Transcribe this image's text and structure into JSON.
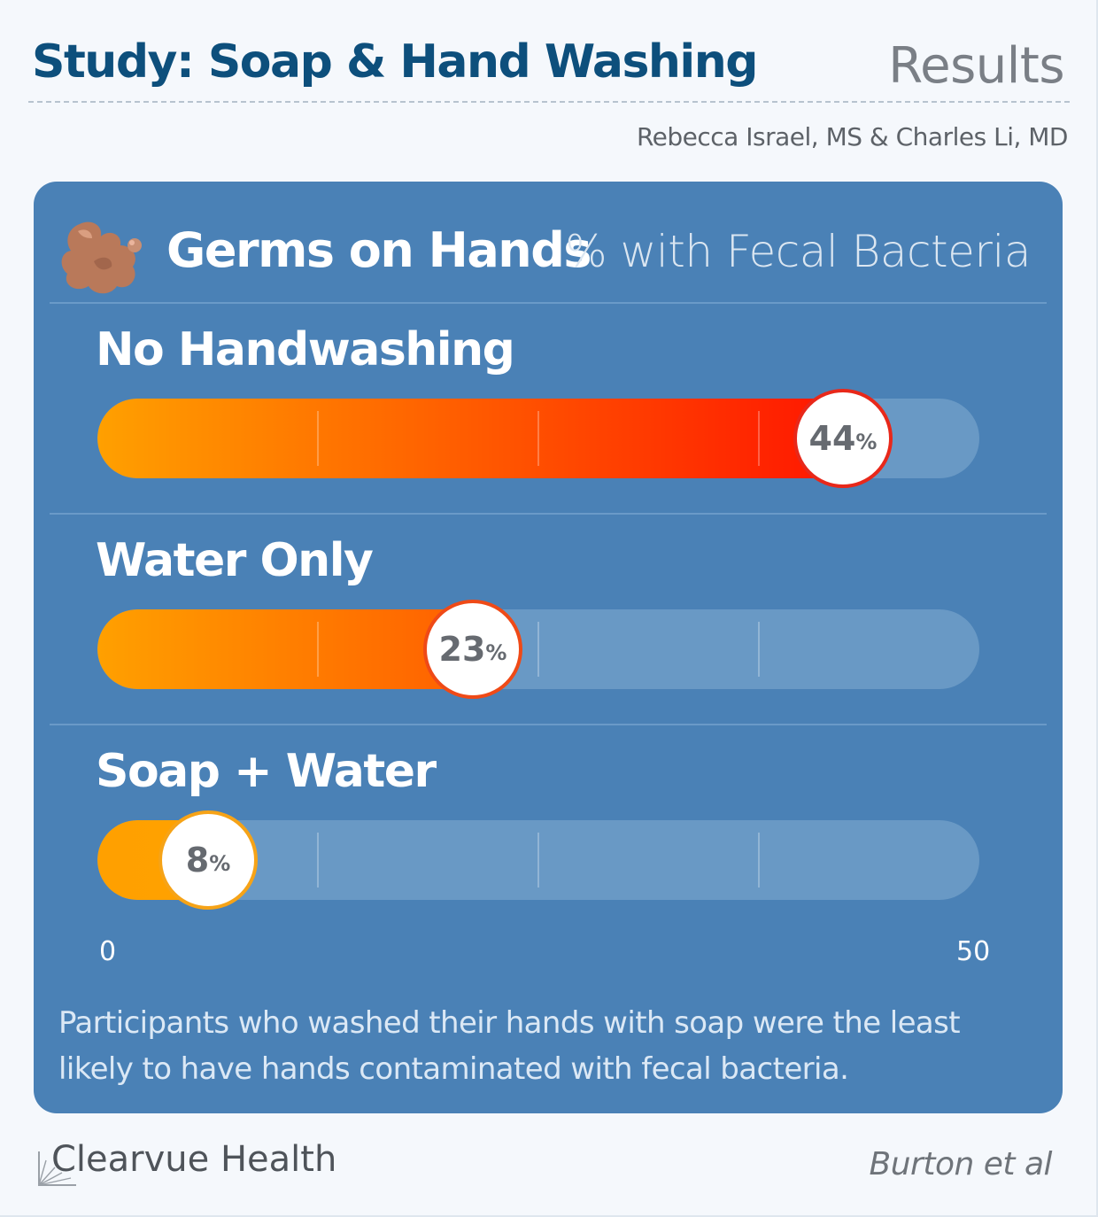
{
  "header": {
    "title": "Study: Soap & Hand Washing",
    "section": "Results",
    "authors": "Rebecca Israel, MS & Charles Li, MD"
  },
  "card": {
    "title": "Germs on Hands",
    "unit_label": "% with Fecal Bacteria",
    "icon": "germ-icon"
  },
  "chart_data": {
    "type": "bar",
    "orientation": "horizontal",
    "title": "Germs on Hands",
    "unit_label": "% with Fecal Bacteria",
    "categories": [
      "No Handwashing",
      "Water Only",
      "Soap + Water"
    ],
    "values": [
      44,
      23,
      8
    ],
    "value_suffix": "%",
    "xlim": [
      0,
      50
    ],
    "axis_min_label": "0",
    "axis_max_label": "50",
    "grid": true,
    "colors": {
      "gradient_start": "#ffa000",
      "gradient_end": "#ff1000",
      "track": "#6999c5",
      "badge_border_high": "#e8281a",
      "badge_border_mid": "#ef4a17",
      "badge_border_low": "#f6a317"
    }
  },
  "note": "Participants who washed their hands with soap were the least likely to have hands contaminated with fecal bacteria.",
  "footer": {
    "brand": "Clearvue Health",
    "source": "Burton et al"
  }
}
